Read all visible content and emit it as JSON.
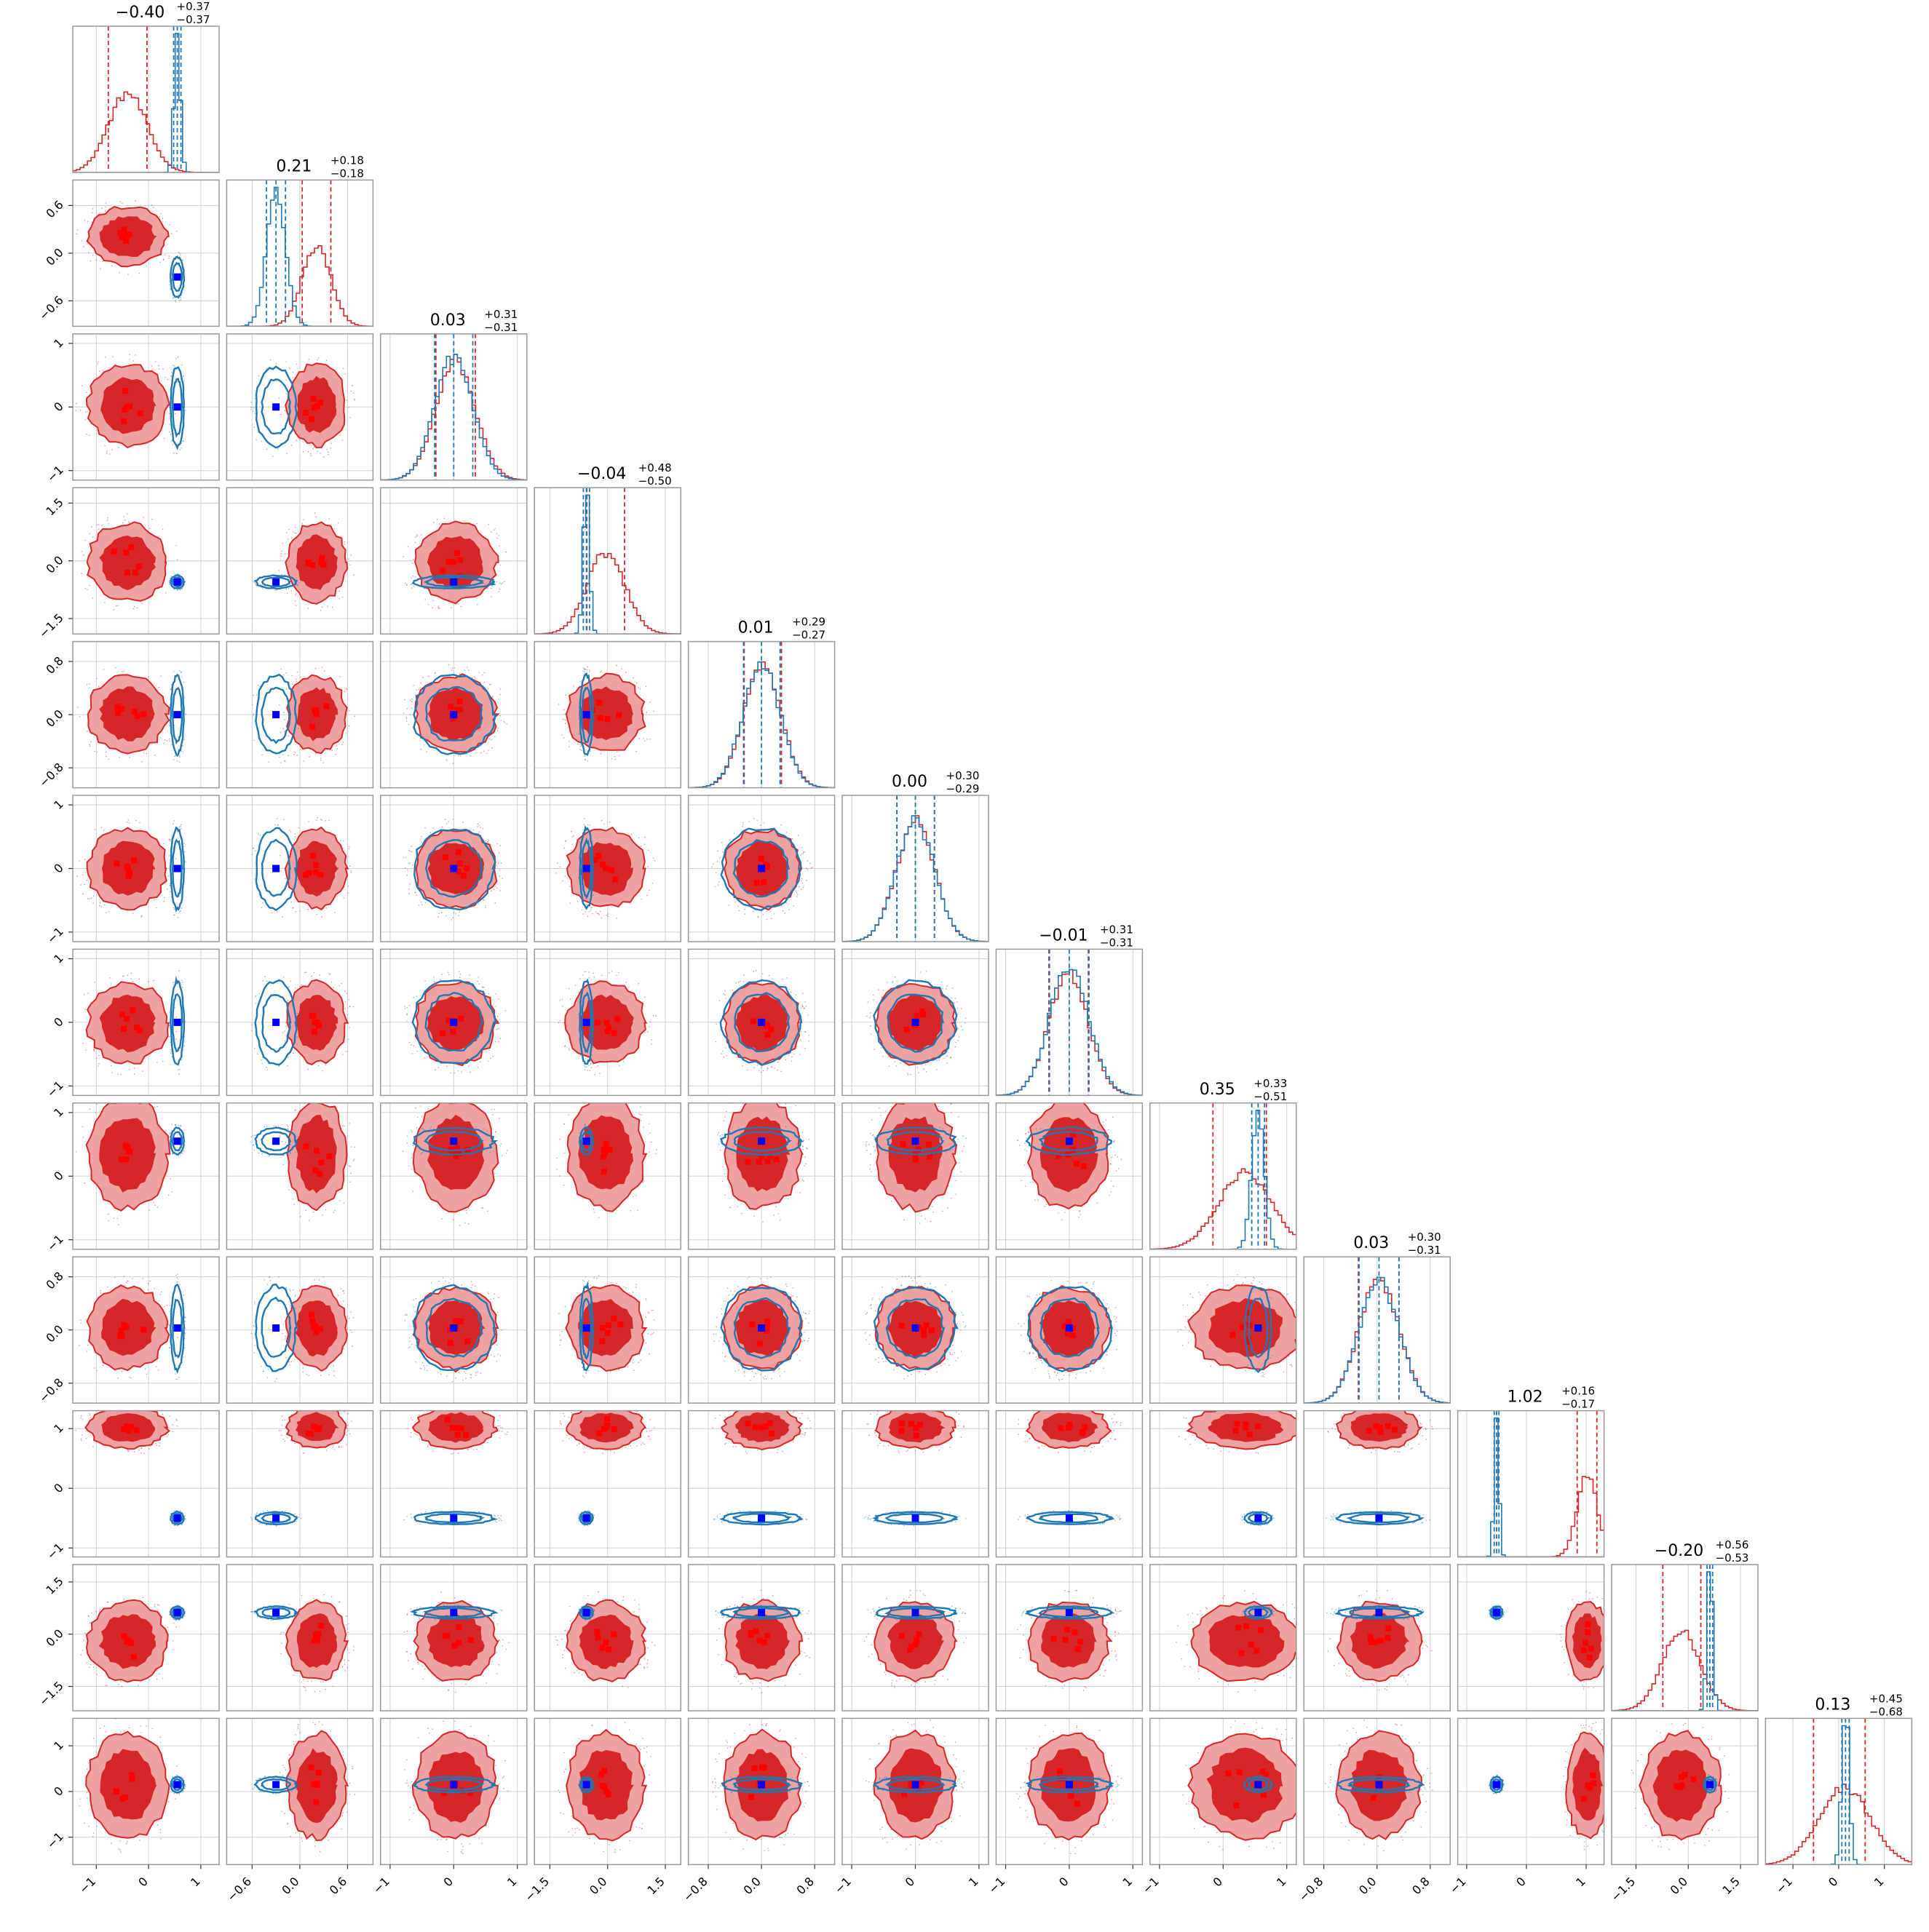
{
  "figure": {
    "type": "corner-plot"
  },
  "colors": {
    "red_main": "#d62728",
    "red_light": "#eea2a2",
    "red_dark": "#e8888a",
    "blue_main": "#1f77b4",
    "blue_marker": "#0000ff",
    "red_marker": "#ff0000",
    "grid": "#d0d0d0",
    "axes": "#999999"
  },
  "chart_data": {
    "type": "corner",
    "n_params": 12,
    "titles": [
      {
        "median": "−0.40",
        "plus": "+0.37",
        "minus": "−0.37"
      },
      {
        "median": "0.21",
        "plus": "+0.18",
        "minus": "−0.18"
      },
      {
        "median": "0.03",
        "plus": "+0.31",
        "minus": "−0.31"
      },
      {
        "median": "−0.04",
        "plus": "+0.48",
        "minus": "−0.50"
      },
      {
        "median": "0.01",
        "plus": "+0.29",
        "minus": "−0.27"
      },
      {
        "median": "0.00",
        "plus": "+0.30",
        "minus": "−0.29"
      },
      {
        "median": "−0.01",
        "plus": "+0.31",
        "minus": "−0.31"
      },
      {
        "median": "0.35",
        "plus": "+0.33",
        "minus": "−0.51"
      },
      {
        "median": "0.03",
        "plus": "+0.30",
        "minus": "−0.31"
      },
      {
        "median": "1.02",
        "plus": "+0.16",
        "minus": "−0.17"
      },
      {
        "median": "−0.20",
        "plus": "+0.56",
        "minus": "−0.53"
      },
      {
        "median": "0.13",
        "plus": "+0.45",
        "minus": "−0.68"
      }
    ],
    "ranges": [
      [
        -1.45,
        1.35
      ],
      [
        -0.92,
        0.92
      ],
      [
        -1.15,
        1.15
      ],
      [
        -1.9,
        1.9
      ],
      [
        -1.1,
        1.1
      ],
      [
        -1.15,
        1.15
      ],
      [
        -1.15,
        1.15
      ],
      [
        -1.15,
        1.15
      ],
      [
        -1.1,
        1.1
      ],
      [
        -1.15,
        1.3
      ],
      [
        -2.2,
        2.0
      ],
      [
        -1.6,
        1.6
      ]
    ],
    "ticks": [
      [
        {
          "v": -1,
          "label": "−1"
        },
        {
          "v": 0,
          "label": "0"
        },
        {
          "v": 1,
          "label": "1"
        }
      ],
      [
        {
          "v": -0.6,
          "label": "−0.6"
        },
        {
          "v": 0,
          "label": "0.0"
        },
        {
          "v": 0.6,
          "label": "0.6"
        }
      ],
      [
        {
          "v": -1,
          "label": "−1"
        },
        {
          "v": 0,
          "label": "0"
        },
        {
          "v": 1,
          "label": "1"
        }
      ],
      [
        {
          "v": -1.5,
          "label": "−1.5"
        },
        {
          "v": 0,
          "label": "0.0"
        },
        {
          "v": 1.5,
          "label": "1.5"
        }
      ],
      [
        {
          "v": -0.8,
          "label": "−0.8"
        },
        {
          "v": 0,
          "label": "0.0"
        },
        {
          "v": 0.8,
          "label": "0.8"
        }
      ],
      [
        {
          "v": -1,
          "label": "−1"
        },
        {
          "v": 0,
          "label": "0"
        },
        {
          "v": 1,
          "label": "1"
        }
      ],
      [
        {
          "v": -1,
          "label": "−1"
        },
        {
          "v": 0,
          "label": "0"
        },
        {
          "v": 1,
          "label": "1"
        }
      ],
      [
        {
          "v": -1,
          "label": "−1"
        },
        {
          "v": 0,
          "label": "0"
        },
        {
          "v": 1,
          "label": "1"
        }
      ],
      [
        {
          "v": -0.8,
          "label": "−0.8"
        },
        {
          "v": 0,
          "label": "0.0"
        },
        {
          "v": 0.8,
          "label": "0.8"
        }
      ],
      [
        {
          "v": -1,
          "label": "−1"
        },
        {
          "v": 0,
          "label": "0"
        },
        {
          "v": 1,
          "label": "1"
        }
      ],
      [
        {
          "v": -1.5,
          "label": "−1.5"
        },
        {
          "v": 0,
          "label": "0.0"
        },
        {
          "v": 1.5,
          "label": "1.5"
        }
      ],
      [
        {
          "v": -1,
          "label": "−1"
        },
        {
          "v": 0,
          "label": "0"
        },
        {
          "v": 1,
          "label": "1"
        }
      ]
    ],
    "red_posterior": {
      "medians": [
        -0.4,
        0.21,
        0.03,
        -0.04,
        0.01,
        0.0,
        -0.01,
        0.35,
        0.03,
        1.02,
        -0.2,
        0.13
      ],
      "sigmas": [
        0.37,
        0.18,
        0.31,
        0.49,
        0.28,
        0.3,
        0.31,
        0.42,
        0.3,
        0.17,
        0.55,
        0.56
      ],
      "quantiles_16": [
        -0.77,
        0.03,
        -0.28,
        -0.54,
        -0.26,
        -0.29,
        -0.32,
        -0.16,
        -0.28,
        0.85,
        -0.73,
        -0.55
      ],
      "quantiles_84": [
        -0.03,
        0.39,
        0.34,
        0.44,
        0.3,
        0.3,
        0.3,
        0.68,
        0.33,
        1.18,
        0.36,
        0.58
      ]
    },
    "blue_posterior": {
      "medians": [
        0.55,
        -0.3,
        0.0,
        -0.55,
        0.0,
        0.0,
        0.0,
        0.55,
        0.03,
        -0.5,
        0.62,
        0.15
      ],
      "sigmas": [
        0.06,
        0.12,
        0.3,
        0.08,
        0.28,
        0.3,
        0.31,
        0.1,
        0.3,
        0.04,
        0.08,
        0.08
      ],
      "quantiles_16": [
        0.48,
        -0.42,
        -0.3,
        -0.63,
        -0.27,
        -0.29,
        -0.31,
        0.45,
        -0.27,
        -0.54,
        0.54,
        0.07
      ],
      "quantiles_84": [
        0.62,
        -0.18,
        0.3,
        -0.47,
        0.28,
        0.3,
        0.31,
        0.65,
        0.33,
        -0.46,
        0.7,
        0.23
      ]
    },
    "truth_markers": {
      "blue": [
        0.55,
        -0.3,
        0.0,
        -0.55,
        0.0,
        0.0,
        0.0,
        0.55,
        0.03,
        -0.5,
        0.62,
        0.15
      ]
    },
    "grid": true
  }
}
